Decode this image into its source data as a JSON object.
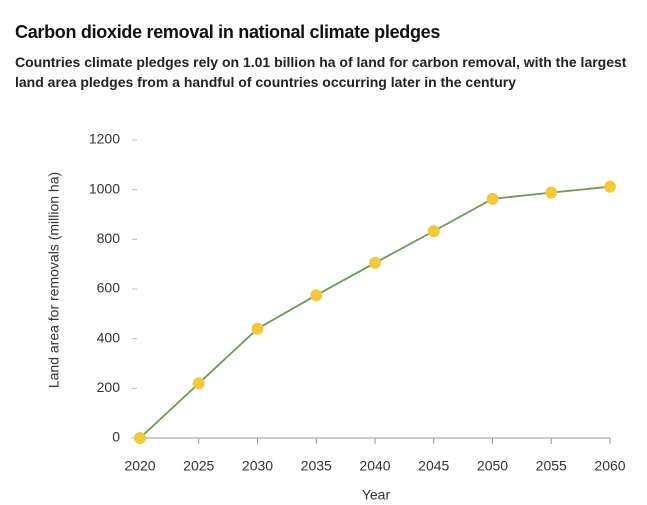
{
  "chart_data": {
    "type": "line",
    "title": "Carbon dioxide removal in national climate pledges",
    "subtitle": "Countries climate pledges rely on 1.01 billion ha of land for carbon removal, with the largest land area pledges from a handful of countries occurring later in the century",
    "x_label": "Year",
    "y_label": "Land area for removals (million ha)",
    "x": [
      2020,
      2025,
      2030,
      2035,
      2040,
      2045,
      2050,
      2055,
      2060
    ],
    "series": [
      {
        "name": "Land area for removals",
        "color": "#6b9a55",
        "marker_color": "#f2c93a",
        "values": [
          0,
          220,
          440,
          575,
          705,
          833,
          963,
          988,
          1012
        ]
      }
    ],
    "xlim": [
      2020,
      2060
    ],
    "xticks": [
      2020,
      2025,
      2030,
      2035,
      2040,
      2045,
      2050,
      2055,
      2060
    ],
    "ylim": [
      0,
      1200
    ],
    "yticks": [
      0,
      200,
      400,
      600,
      800,
      1000,
      1200
    ],
    "grid": false
  }
}
